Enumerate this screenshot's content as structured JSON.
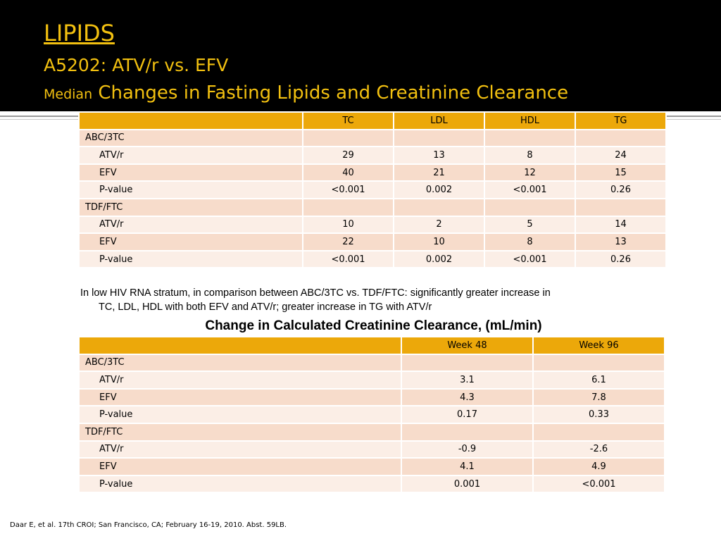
{
  "header": {
    "title": "LIPIDS",
    "study": "A5202:  ATV/r vs. EFV",
    "subtitle_prefix": "Median",
    "subtitle_rest": "Changes in Fasting Lipids and Creatinine Clearance"
  },
  "lipids_table": {
    "columns": [
      "",
      "TC",
      "LDL",
      "HDL",
      "TG"
    ],
    "rows": [
      {
        "label": "ABC/3TC",
        "values": [
          "",
          "",
          "",
          ""
        ]
      },
      {
        "label": "ATV/r",
        "values": [
          "29",
          "13",
          "8",
          "24"
        ]
      },
      {
        "label": "EFV",
        "values": [
          "40",
          "21",
          "12",
          "15"
        ]
      },
      {
        "label": "P-value",
        "values": [
          "<0.001",
          "0.002",
          "<0.001",
          "0.26"
        ]
      },
      {
        "label": "TDF/FTC",
        "values": [
          "",
          "",
          "",
          ""
        ]
      },
      {
        "label": "ATV/r",
        "values": [
          "10",
          "2",
          "5",
          "14"
        ]
      },
      {
        "label": "EFV",
        "values": [
          "22",
          "10",
          "8",
          "13"
        ]
      },
      {
        "label": "P-value",
        "values": [
          "<0.001",
          "0.002",
          "<0.001",
          "0.26"
        ]
      }
    ]
  },
  "note": {
    "line1": "In low HIV RNA stratum, in comparison between ABC/3TC vs. TDF/FTC: significantly greater increase in",
    "line2": "TC, LDL, HDL with both EFV and ATV/r; greater increase in TG with ATV/r"
  },
  "creatinine": {
    "title": "Change in Calculated Creatinine Clearance, (mL/min)",
    "columns": [
      "",
      "Week 48",
      "Week 96"
    ],
    "rows": [
      {
        "label": "ABC/3TC",
        "values": [
          "",
          ""
        ]
      },
      {
        "label": "ATV/r",
        "values": [
          "3.1",
          "6.1"
        ]
      },
      {
        "label": "EFV",
        "values": [
          "4.3",
          "7.8"
        ]
      },
      {
        "label": "P-value",
        "values": [
          "0.17",
          "0.33"
        ]
      },
      {
        "label": "TDF/FTC",
        "values": [
          "",
          ""
        ]
      },
      {
        "label": "ATV/r",
        "values": [
          "-0.9",
          "-2.6"
        ]
      },
      {
        "label": "EFV",
        "values": [
          "4.1",
          "4.9"
        ]
      },
      {
        "label": "P-value",
        "values": [
          "0.001",
          "<0.001"
        ]
      }
    ]
  },
  "footnote": "Daar E, et al. 17th CROI; San Francisco, CA; February 16-19, 2010. Abst. 59LB.",
  "colors": {
    "header_bg": "#000000",
    "title_gold": "#f2c010",
    "table_header": "#eca80a",
    "row_dark": "#f7dccb",
    "row_light": "#fbeee6"
  }
}
